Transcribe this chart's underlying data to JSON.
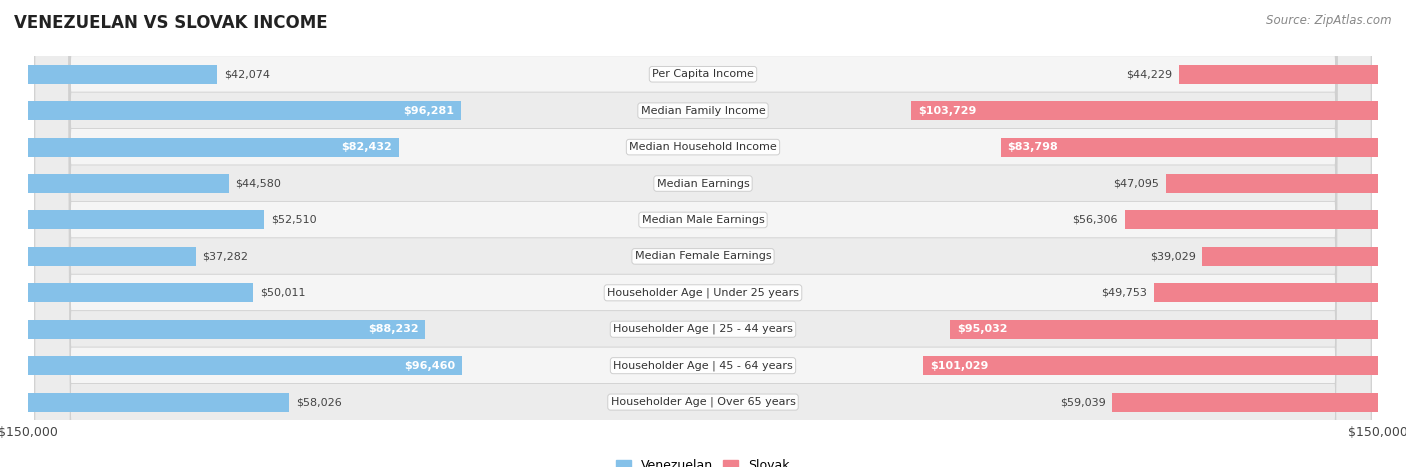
{
  "title": "VENEZUELAN VS SLOVAK INCOME",
  "source": "Source: ZipAtlas.com",
  "categories": [
    "Per Capita Income",
    "Median Family Income",
    "Median Household Income",
    "Median Earnings",
    "Median Male Earnings",
    "Median Female Earnings",
    "Householder Age | Under 25 years",
    "Householder Age | 25 - 44 years",
    "Householder Age | 45 - 64 years",
    "Householder Age | Over 65 years"
  ],
  "venezuelan": [
    42074,
    96281,
    82432,
    44580,
    52510,
    37282,
    50011,
    88232,
    96460,
    58026
  ],
  "slovak": [
    44229,
    103729,
    83798,
    47095,
    56306,
    39029,
    49753,
    95032,
    101029,
    59039
  ],
  "max_val": 150000,
  "venezuelan_color": "#85C1E9",
  "slovak_color": "#F1828D",
  "ven_color_inside": "#5DADE2",
  "slo_color_inside": "#E91E8C",
  "bar_height": 0.52,
  "inside_threshold": 75000,
  "row_colors": [
    "#f7f7f7",
    "#efefef"
  ],
  "row_border_color": "#dddddd",
  "bg_color": "#ffffff",
  "label_color_outside": "#555555",
  "label_color_inside": "#ffffff",
  "title_fontsize": 12,
  "label_fontsize": 8,
  "cat_fontsize": 8
}
